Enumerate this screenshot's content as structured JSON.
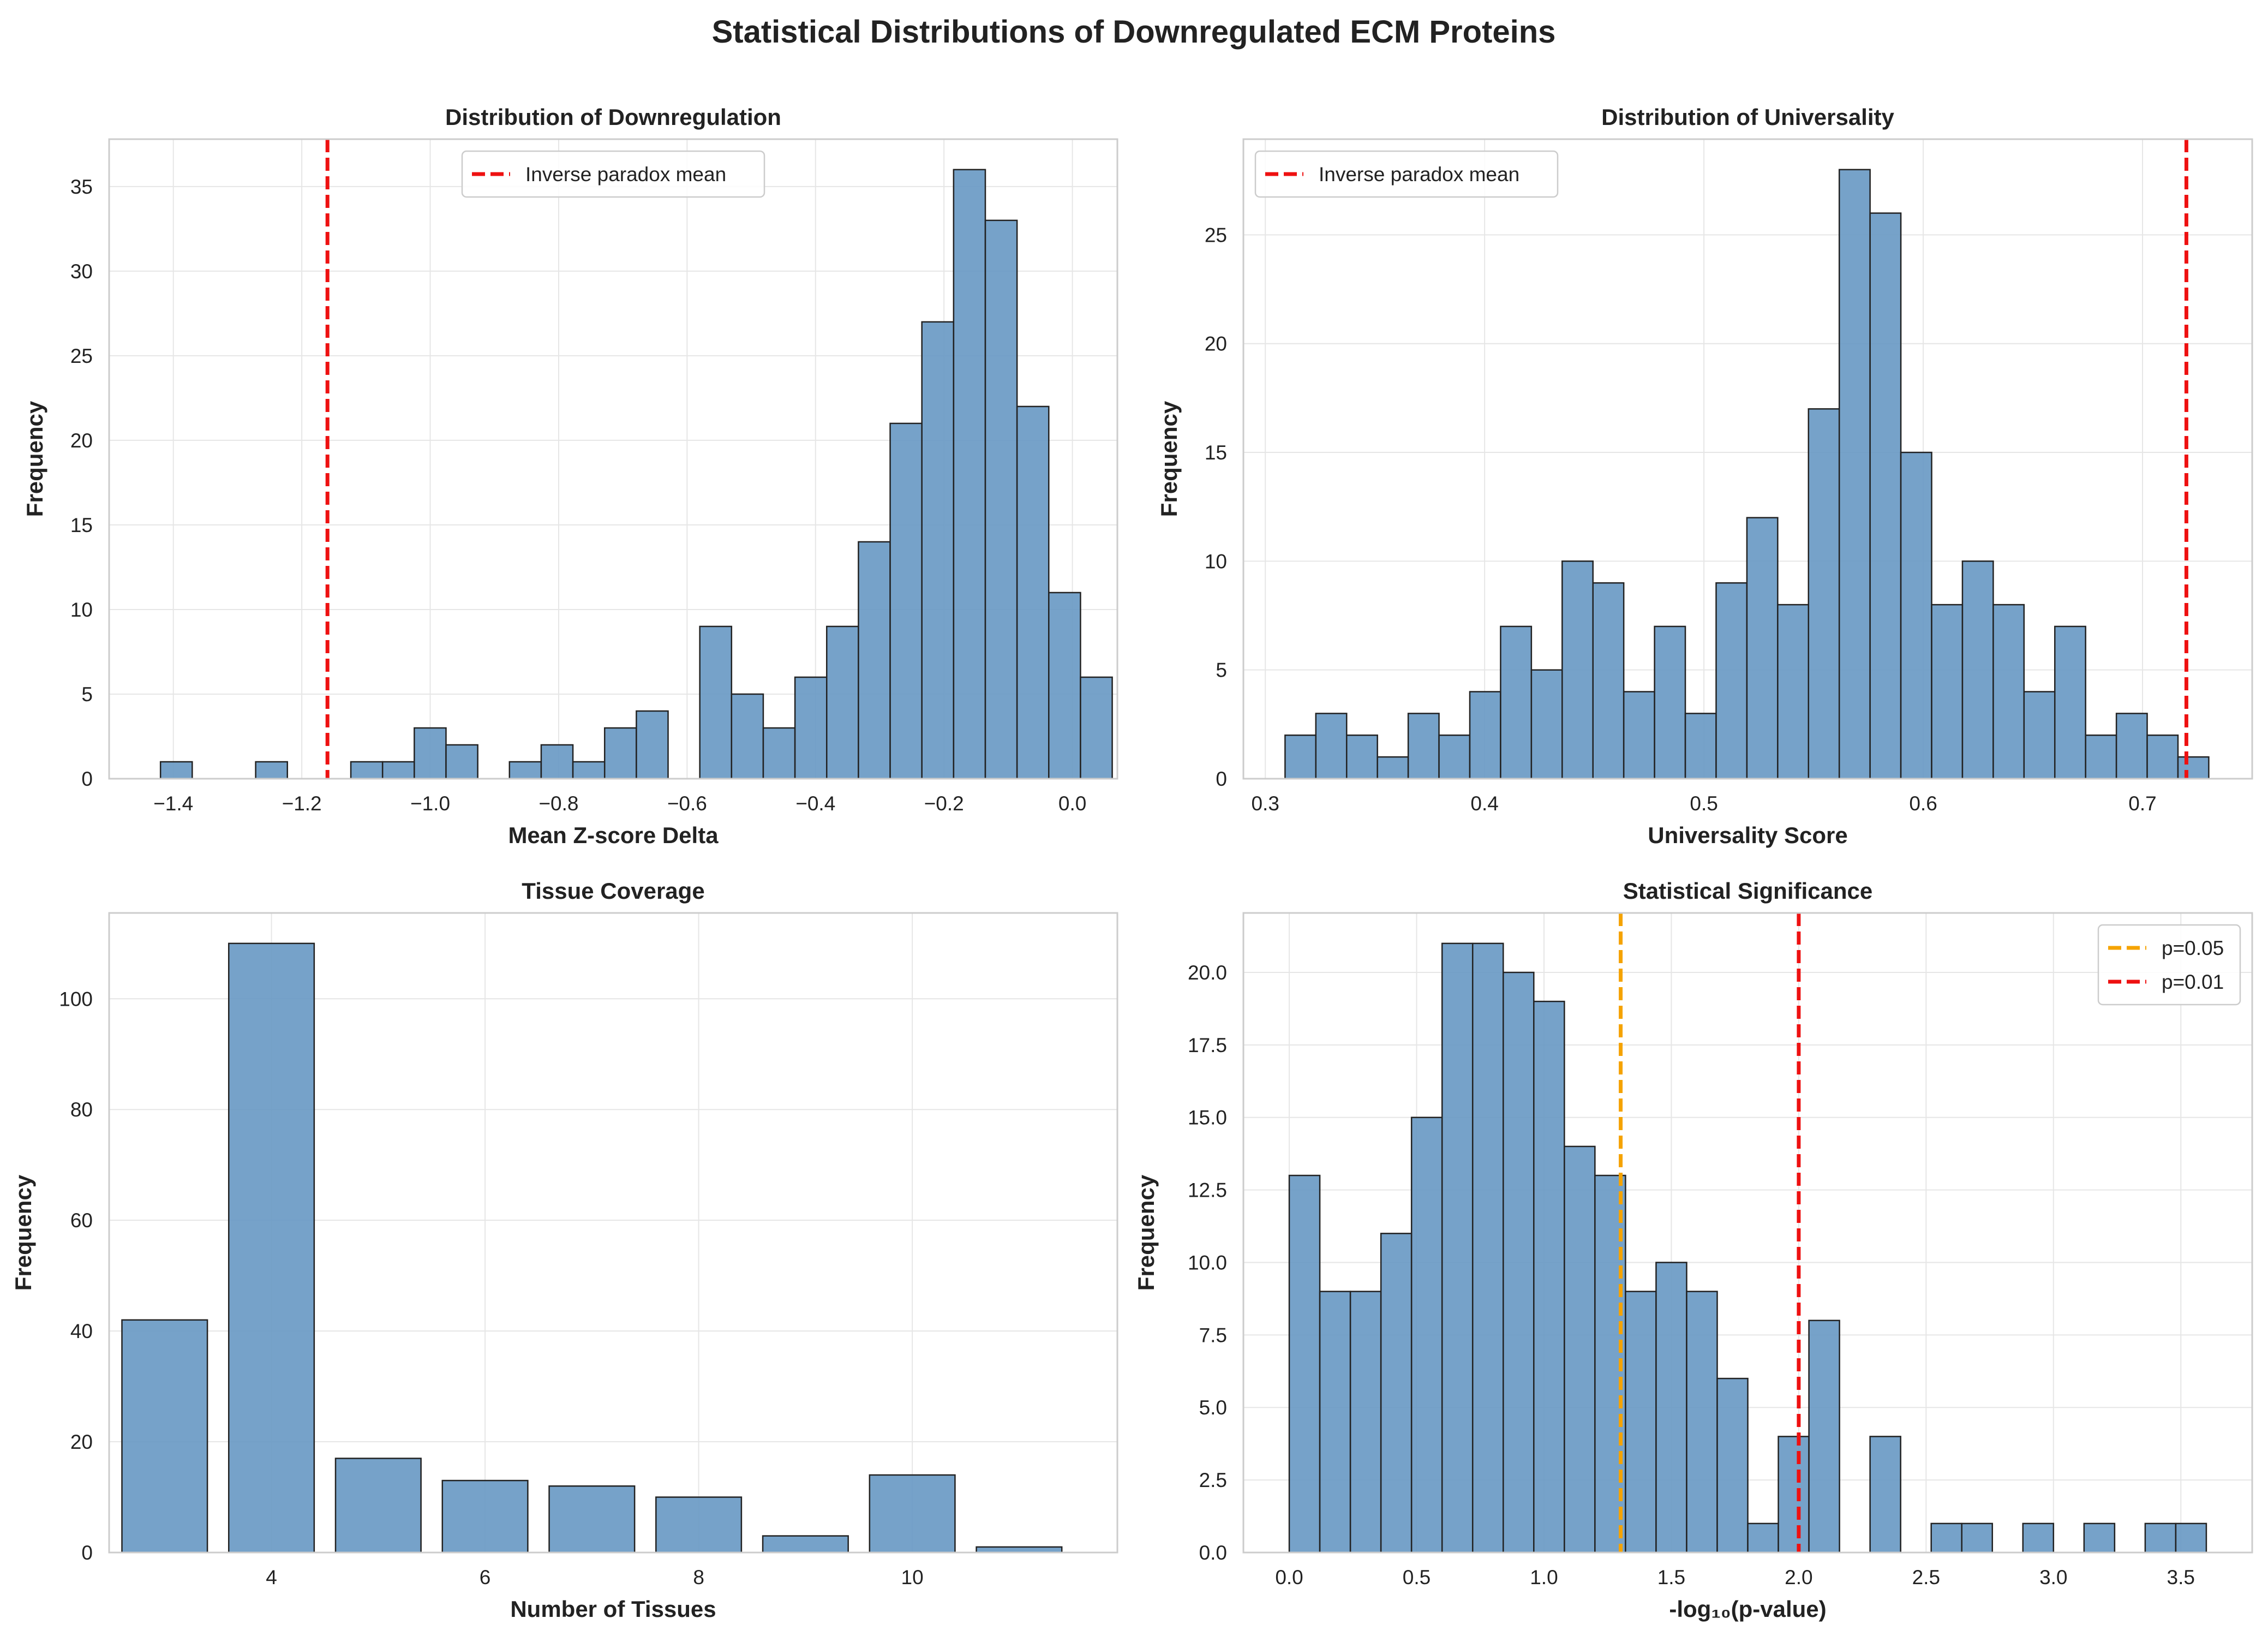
{
  "figure": {
    "title": "Statistical Distributions of Downregulated ECM Proteins"
  },
  "style": {
    "bar_fill": "#6a9ac4",
    "bar_edge": "#222222",
    "grid": "#e6e6e6",
    "frame": "#cccccc",
    "red_line": "#ee1111",
    "orange_line": "#f5a300"
  },
  "chart_data": [
    {
      "id": "downregulation",
      "type": "bar",
      "title": "Distribution of Downregulation",
      "xlabel": "Mean Z-score Delta",
      "ylabel": "Frequency",
      "xlim": [
        -1.5,
        0.07
      ],
      "ylim": [
        0,
        37.8
      ],
      "xticks": [
        -1.4,
        -1.2,
        -1.0,
        -0.8,
        -0.6,
        -0.4,
        -0.2,
        0.0
      ],
      "xticklabels": [
        "−1.4",
        "−1.2",
        "−1.0",
        "−0.8",
        "−0.6",
        "−0.4",
        "−0.2",
        "0.0"
      ],
      "yticks": [
        0,
        5,
        10,
        15,
        20,
        25,
        30,
        35
      ],
      "yticklabels": [
        "0",
        "5",
        "10",
        "15",
        "20",
        "25",
        "30",
        "35"
      ],
      "grid": true,
      "bin_start": -1.42,
      "bin_width": 0.0494,
      "counts": [
        1,
        0,
        0,
        1,
        0,
        0,
        1,
        1,
        3,
        2,
        0,
        1,
        2,
        1,
        3,
        4,
        0,
        9,
        5,
        3,
        6,
        9,
        14,
        21,
        27,
        36,
        33,
        22,
        11,
        6
      ],
      "vlines": [
        {
          "x": -1.16,
          "color": "#ee1111",
          "label": "Inverse paradox mean"
        }
      ],
      "legend_position": "top-center"
    },
    {
      "id": "universality",
      "type": "bar",
      "title": "Distribution of Universality",
      "xlabel": "Universality Score",
      "ylabel": "Frequency",
      "xlim": [
        0.29,
        0.75
      ],
      "ylim": [
        0,
        29.4
      ],
      "xticks": [
        0.3,
        0.4,
        0.5,
        0.6,
        0.7
      ],
      "xticklabels": [
        "0.3",
        "0.4",
        "0.5",
        "0.6",
        "0.7"
      ],
      "yticks": [
        0,
        5,
        10,
        15,
        20,
        25
      ],
      "yticklabels": [
        "0",
        "5",
        "10",
        "15",
        "20",
        "25"
      ],
      "grid": true,
      "bin_start": 0.309,
      "bin_width": 0.01404,
      "counts": [
        2,
        3,
        2,
        1,
        3,
        2,
        4,
        7,
        5,
        10,
        9,
        4,
        7,
        3,
        9,
        12,
        8,
        17,
        28,
        26,
        15,
        8,
        10,
        8,
        4,
        7,
        2,
        3,
        2,
        1
      ],
      "vlines": [
        {
          "x": 0.72,
          "color": "#ee1111",
          "label": "Inverse paradox mean"
        }
      ],
      "legend_position": "top-left"
    },
    {
      "id": "tissue_coverage",
      "type": "bar",
      "title": "Tissue Coverage",
      "xlabel": "Number of Tissues",
      "ylabel": "Frequency",
      "xlim": [
        2.48,
        11.92
      ],
      "ylim": [
        0,
        115.5
      ],
      "xticks": [
        4,
        6,
        8,
        10
      ],
      "xticklabels": [
        "4",
        "6",
        "8",
        "10"
      ],
      "yticks": [
        0,
        20,
        40,
        60,
        80,
        100
      ],
      "yticklabels": [
        "0",
        "20",
        "40",
        "60",
        "80",
        "100"
      ],
      "grid": true,
      "categories": [
        3,
        4,
        5,
        6,
        7,
        8,
        9,
        10,
        11
      ],
      "values": [
        42,
        110,
        17,
        13,
        12,
        10,
        3,
        14,
        1
      ],
      "bar_width": 0.8
    },
    {
      "id": "significance",
      "type": "bar",
      "title": "Statistical Significance",
      "xlabel": "-log₁₀(p-value)",
      "ylabel": "Frequency",
      "xlim": [
        -0.18,
        3.78
      ],
      "ylim": [
        0,
        22.05
      ],
      "xticks": [
        0.0,
        0.5,
        1.0,
        1.5,
        2.0,
        2.5,
        3.0,
        3.5
      ],
      "xticklabels": [
        "0.0",
        "0.5",
        "1.0",
        "1.5",
        "2.0",
        "2.5",
        "3.0",
        "3.5"
      ],
      "yticks": [
        0,
        2.5,
        5,
        7.5,
        10,
        12.5,
        15,
        17.5,
        20
      ],
      "yticklabels": [
        "0.0",
        "2.5",
        "5.0",
        "7.5",
        "10.0",
        "12.5",
        "15.0",
        "17.5",
        "20.0"
      ],
      "grid": true,
      "bin_start": 0.0,
      "bin_width": 0.12,
      "counts": [
        13,
        9,
        9,
        11,
        15,
        21,
        21,
        20,
        19,
        14,
        13,
        9,
        10,
        9,
        6,
        1,
        4,
        8,
        0,
        4,
        0,
        1,
        1,
        0,
        1,
        0,
        1,
        0,
        1,
        1
      ],
      "vlines": [
        {
          "x": 1.301,
          "color": "#f5a300",
          "label": "p=0.05"
        },
        {
          "x": 2.0,
          "color": "#ee1111",
          "label": "p=0.01"
        }
      ],
      "legend_position": "top-right"
    }
  ]
}
